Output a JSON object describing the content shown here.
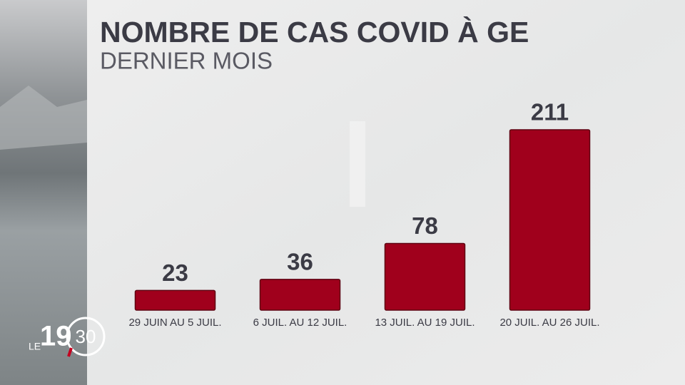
{
  "chart_data": {
    "type": "bar",
    "title": "NOMBRE DE CAS COVID À GE",
    "subtitle": "DERNIER MOIS",
    "categories": [
      "29 JUIN AU 5 JUIL.",
      "6 JUIL. AU 12 JUIL.",
      "13 JUIL. AU 19 JUIL.",
      "20 JUIL. AU 26 JUIL."
    ],
    "values": [
      23,
      36,
      78,
      211
    ],
    "color": "#a0001c"
  },
  "logo": {
    "prefix": "LE",
    "hour": "19",
    "minute": "30"
  }
}
